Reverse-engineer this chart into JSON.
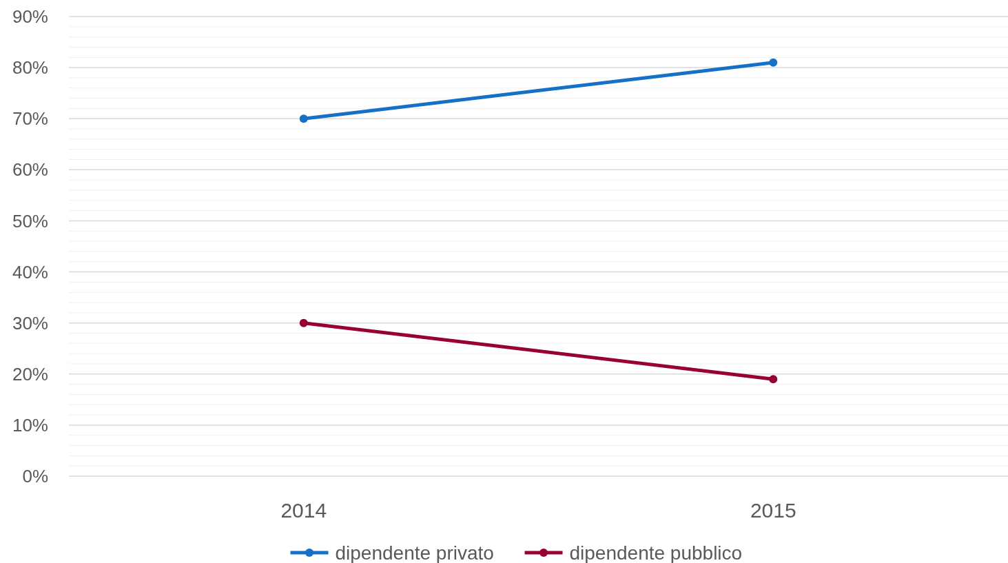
{
  "chart_data": {
    "type": "line",
    "categories": [
      "2014",
      "2015"
    ],
    "series": [
      {
        "name": "dipendente privato",
        "color": "#1570c8",
        "values": [
          70,
          81
        ]
      },
      {
        "name": "dipendente pubblico",
        "color": "#980033",
        "values": [
          30,
          19
        ]
      }
    ],
    "ylim": [
      0,
      90
    ],
    "yticks": [
      {
        "value": 0,
        "label": "0%"
      },
      {
        "value": 2,
        "label": null
      },
      {
        "value": 4,
        "label": null
      },
      {
        "value": 6,
        "label": null
      },
      {
        "value": 8,
        "label": null
      },
      {
        "value": 10,
        "label": "10%"
      },
      {
        "value": 12,
        "label": null
      },
      {
        "value": 14,
        "label": null
      },
      {
        "value": 16,
        "label": null
      },
      {
        "value": 18,
        "label": null
      },
      {
        "value": 20,
        "label": "20%"
      },
      {
        "value": 22,
        "label": null
      },
      {
        "value": 24,
        "label": null
      },
      {
        "value": 26,
        "label": null
      },
      {
        "value": 28,
        "label": null
      },
      {
        "value": 30,
        "label": "30%"
      },
      {
        "value": 32,
        "label": null
      },
      {
        "value": 34,
        "label": null
      },
      {
        "value": 36,
        "label": null
      },
      {
        "value": 38,
        "label": null
      },
      {
        "value": 40,
        "label": "40%"
      },
      {
        "value": 42,
        "label": null
      },
      {
        "value": 44,
        "label": null
      },
      {
        "value": 46,
        "label": null
      },
      {
        "value": 48,
        "label": null
      },
      {
        "value": 50,
        "label": "50%"
      },
      {
        "value": 52,
        "label": null
      },
      {
        "value": 54,
        "label": null
      },
      {
        "value": 56,
        "label": null
      },
      {
        "value": 58,
        "label": null
      },
      {
        "value": 60,
        "label": "60%"
      },
      {
        "value": 62,
        "label": null
      },
      {
        "value": 64,
        "label": null
      },
      {
        "value": 66,
        "label": null
      },
      {
        "value": 68,
        "label": null
      },
      {
        "value": 70,
        "label": "70%"
      },
      {
        "value": 72,
        "label": null
      },
      {
        "value": 74,
        "label": null
      },
      {
        "value": 76,
        "label": null
      },
      {
        "value": 78,
        "label": null
      },
      {
        "value": 80,
        "label": "80%"
      },
      {
        "value": 82,
        "label": null
      },
      {
        "value": 84,
        "label": null
      },
      {
        "value": 86,
        "label": null
      },
      {
        "value": 88,
        "label": null
      },
      {
        "value": 90,
        "label": "90%"
      }
    ],
    "grid": "y",
    "legend": "bottom",
    "marker": "circle",
    "line_style": "solid"
  }
}
